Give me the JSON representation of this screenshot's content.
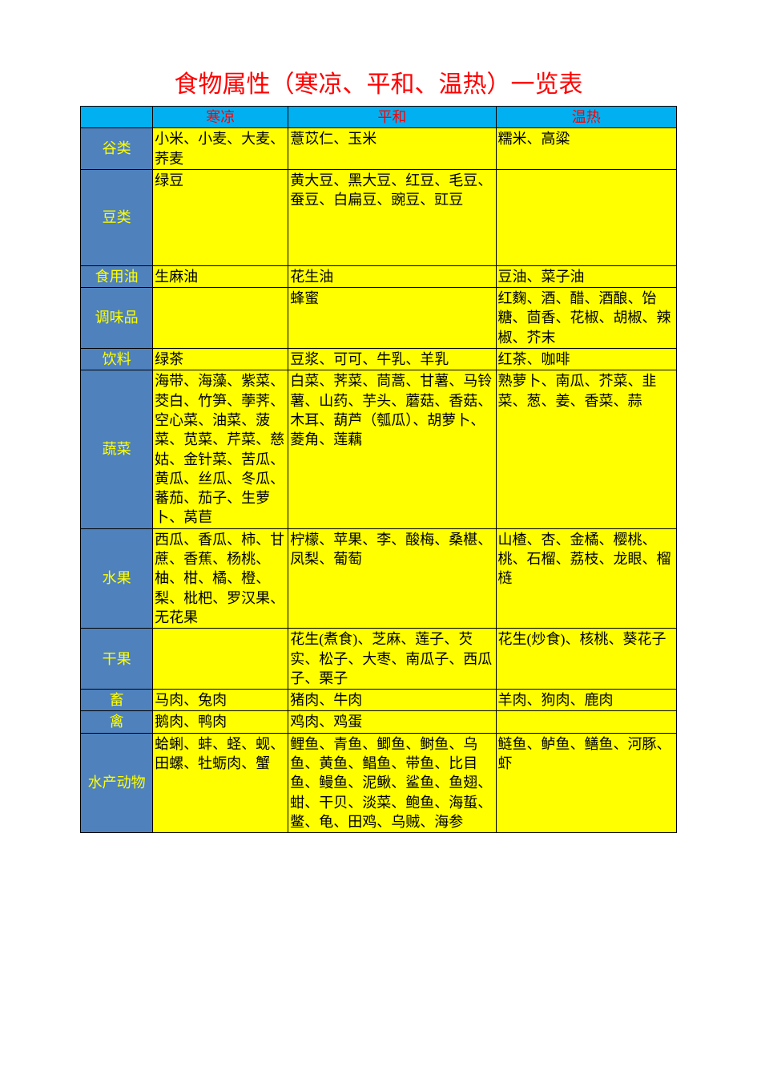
{
  "title": "食物属性（寒凉、平和、温热）一览表",
  "colors": {
    "title_color": "#ff0000",
    "header_bg": "#00b0f0",
    "header_text": "#ff0000",
    "rowheader_bg": "#4f81bd",
    "rowheader_text": "#ffff00",
    "cell_bg": "#ffff00",
    "cell_text": "#000000",
    "border": "#000000",
    "page_bg": "#ffffff"
  },
  "typography": {
    "title_fontsize": 30,
    "cell_fontsize": 18,
    "font_family": "SimSun"
  },
  "columns": {
    "blank": "",
    "cold": "寒凉",
    "neutral": "平和",
    "warm": "温热"
  },
  "column_widths": {
    "category": 80,
    "cold": 150,
    "neutral": 230,
    "warm": 200
  },
  "rows": [
    {
      "cat": "谷类",
      "cold": "小米、小麦、大麦、荞麦",
      "neutral": "薏苡仁、玉米",
      "warm": "糯米、高粱"
    },
    {
      "cat": "豆类",
      "cold": "绿豆",
      "neutral": "黄大豆、黑大豆、红豆、毛豆、蚕豆、白扁豆、豌豆、豇豆",
      "warm": "",
      "tall": true
    },
    {
      "cat": "食用油",
      "cold": "生麻油",
      "neutral": "花生油",
      "warm": "豆油、菜子油"
    },
    {
      "cat": "调味品",
      "cold": "",
      "neutral": "蜂蜜",
      "warm": "红麴、酒、醋、酒酿、饴糖、茴香、花椒、胡椒、辣椒、芥末"
    },
    {
      "cat": "饮料",
      "cold": "绿茶",
      "neutral": "豆浆、可可、牛乳、羊乳",
      "warm": "红茶、咖啡"
    },
    {
      "cat": "蔬菜",
      "cold": "海带、海藻、紫菜、茭白、竹笋、荸荠、空心菜、油菜、菠菜、苋菜、芹菜、慈姑、金针菜、苦瓜、黄瓜、丝瓜、冬瓜、蕃茄、茄子、生萝卜、莴苣",
      "neutral": "白菜、荠菜、茼蒿、甘薯、马铃薯、山药、芋头、蘑菇、香菇、木耳、葫芦（瓠瓜）、胡萝卜、菱角、莲藕",
      "warm": "熟萝卜、南瓜、芥菜、韭菜、葱、姜、香菜、蒜"
    },
    {
      "cat": "水果",
      "cold": "西瓜、香瓜、柿、甘蔗、香蕉、杨桃、柚、柑、橘、橙、梨、枇杷、罗汉果、无花果",
      "neutral": "柠檬、苹果、李、酸梅、桑椹、凤梨、葡萄",
      "warm": "山楂、杏、金橘、樱桃、桃、石榴、荔枝、龙眼、榴梿"
    },
    {
      "cat": "干果",
      "cold": "",
      "neutral": "花生(煮食)、芝麻、莲子、芡实、松子、大枣、南瓜子、西瓜子、栗子",
      "warm": "花生(炒食)、核桃、葵花子"
    },
    {
      "cat": "畜",
      "cold": "马肉、兔肉",
      "neutral": "猪肉、牛肉",
      "warm": "羊肉、狗肉、鹿肉"
    },
    {
      "cat": "禽",
      "cold": "鹅肉、鸭肉",
      "neutral": "鸡肉、鸡蛋",
      "warm": ""
    },
    {
      "cat": "水产动物",
      "cold": "蛤蜊、蚌、蛏、蚬、田螺、牡蛎肉、蟹",
      "neutral": "鲤鱼、青鱼、鲫鱼、鲥鱼、乌鱼、黄鱼、鲳鱼、带鱼、比目鱼、鳗鱼、泥鳅、鲨鱼、鱼翅、蚶、干贝、淡菜、鲍鱼、海蜇、鳖、龟、田鸡、乌贼、海参",
      "warm": "鲢鱼、鲈鱼、鳝鱼、河豚、虾"
    }
  ]
}
